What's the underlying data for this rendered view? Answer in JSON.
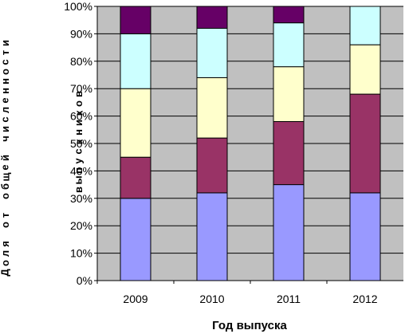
{
  "chart_data": {
    "type": "bar",
    "stacked": true,
    "percent": true,
    "categories": [
      "2009",
      "2010",
      "2011",
      "2012"
    ],
    "series": [
      {
        "values": [
          30,
          32,
          35,
          32
        ],
        "color": "#9999ff"
      },
      {
        "values": [
          15,
          20,
          23,
          36
        ],
        "color": "#993366"
      },
      {
        "values": [
          25,
          22,
          20,
          18
        ],
        "color": "#ffffcc"
      },
      {
        "values": [
          20,
          18,
          16,
          14
        ],
        "color": "#ccffff"
      },
      {
        "values": [
          10,
          8,
          6,
          0
        ],
        "color": "#660066"
      }
    ],
    "yticks": [
      "0%",
      "10%",
      "20%",
      "30%",
      "40%",
      "50%",
      "60%",
      "70%",
      "80%",
      "90%",
      "100%"
    ],
    "ylim": [
      0,
      100
    ],
    "xlabel": "Год выпуска",
    "ylabel_line1": "Доля от общей численности",
    "ylabel_line2": "выпускников",
    "plot_background": "#c0c0c0",
    "grid": true,
    "legend": "none"
  }
}
